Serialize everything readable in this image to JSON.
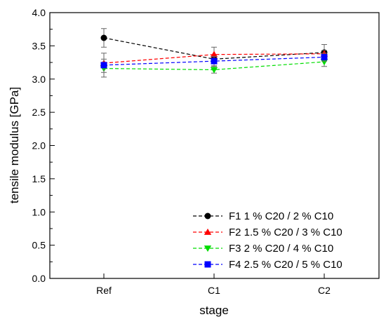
{
  "chart_data": {
    "type": "line",
    "title": "",
    "xlabel": "stage",
    "ylabel": "tensile modulus [GPa]",
    "categories": [
      "Ref",
      "C1",
      "C2"
    ],
    "ylim": [
      0.0,
      4.0
    ],
    "yticks": [
      "0.0",
      "0.5",
      "1.0",
      "1.5",
      "2.0",
      "2.5",
      "3.0",
      "3.5",
      "4.0"
    ],
    "grid": false,
    "legend_position": "bottom-right",
    "series": [
      {
        "name": "F1 1 % C20 / 2 % C10",
        "color": "#000000",
        "marker": "circle",
        "values": [
          3.62,
          3.3,
          3.4
        ],
        "errors": [
          0.14,
          0.05,
          0.12
        ]
      },
      {
        "name": "F2 1.5 % C20 / 3 % C10",
        "color": "#ff0000",
        "marker": "triangle-up",
        "values": [
          3.24,
          3.37,
          3.38
        ],
        "errors": [
          0.06,
          0.11,
          0.05
        ]
      },
      {
        "name": "F3 2 % C20 / 4 % C10",
        "color": "#00dd00",
        "marker": "triangle-down",
        "values": [
          3.16,
          3.14,
          3.26
        ],
        "errors": [
          0.06,
          0.05,
          0.07
        ]
      },
      {
        "name": "F4 2.5 % C20 / 5 % C10",
        "color": "#0000ff",
        "marker": "square",
        "values": [
          3.21,
          3.27,
          3.33
        ],
        "errors": [
          0.18,
          0.07,
          0.06
        ]
      }
    ]
  }
}
